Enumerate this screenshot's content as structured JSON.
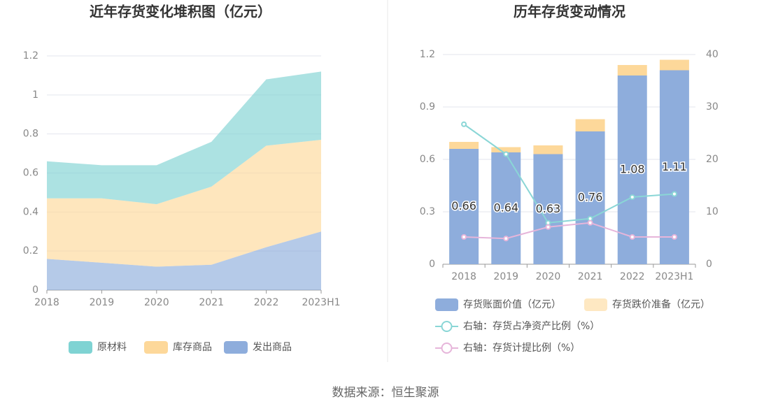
{
  "chart_data": [
    {
      "type": "area",
      "title": "近年存货变化堆积图（亿元）",
      "categories": [
        "2018",
        "2019",
        "2020",
        "2021",
        "2022",
        "2023H1"
      ],
      "series": [
        {
          "name": "原材料",
          "color": "#7fd3d3",
          "values": [
            0.19,
            0.17,
            0.2,
            0.23,
            0.34,
            0.35
          ]
        },
        {
          "name": "库存商品",
          "color": "#fdd89a",
          "values": [
            0.31,
            0.33,
            0.32,
            0.4,
            0.52,
            0.47
          ]
        },
        {
          "name": "发出商品",
          "color": "#8eaddc",
          "values": [
            0.16,
            0.14,
            0.12,
            0.13,
            0.22,
            0.3
          ]
        }
      ],
      "ylim": [
        0,
        1.2
      ],
      "yticks": [
        0,
        0.2,
        0.4,
        0.6,
        0.8,
        1,
        1.2
      ],
      "grid": true
    },
    {
      "type": "bar",
      "title": "历年存货变动情况",
      "categories": [
        "2018",
        "2019",
        "2020",
        "2021",
        "2022",
        "2023H1"
      ],
      "series": [
        {
          "name": "存货账面价值（亿元）",
          "color": "#8eaddc",
          "values": [
            0.66,
            0.64,
            0.63,
            0.76,
            1.08,
            1.11
          ],
          "labels": true
        },
        {
          "name": "存货跌价准备（亿元）",
          "color": "#fdd89a",
          "values": [
            0.04,
            0.03,
            0.05,
            0.07,
            0.06,
            0.06
          ]
        },
        {
          "name": "右轴：存货占净资产比例（%）",
          "color": "#8ad6d6",
          "axis": "y2",
          "values": [
            26.7,
            21.0,
            7.9,
            8.7,
            12.8,
            13.4
          ]
        },
        {
          "name": "右轴：存货计提比例（%）",
          "color": "#e6b5da",
          "axis": "y2",
          "values": [
            5.2,
            4.9,
            7.1,
            7.9,
            5.2,
            5.2
          ]
        }
      ],
      "ylim": [
        0,
        1.2
      ],
      "yticks": [
        0,
        0.3,
        0.6,
        0.9,
        1.2
      ],
      "y2lim": [
        0,
        40
      ],
      "y2ticks": [
        0,
        10,
        20,
        30,
        40
      ],
      "grid": true
    }
  ],
  "source": "数据来源：恒生聚源"
}
